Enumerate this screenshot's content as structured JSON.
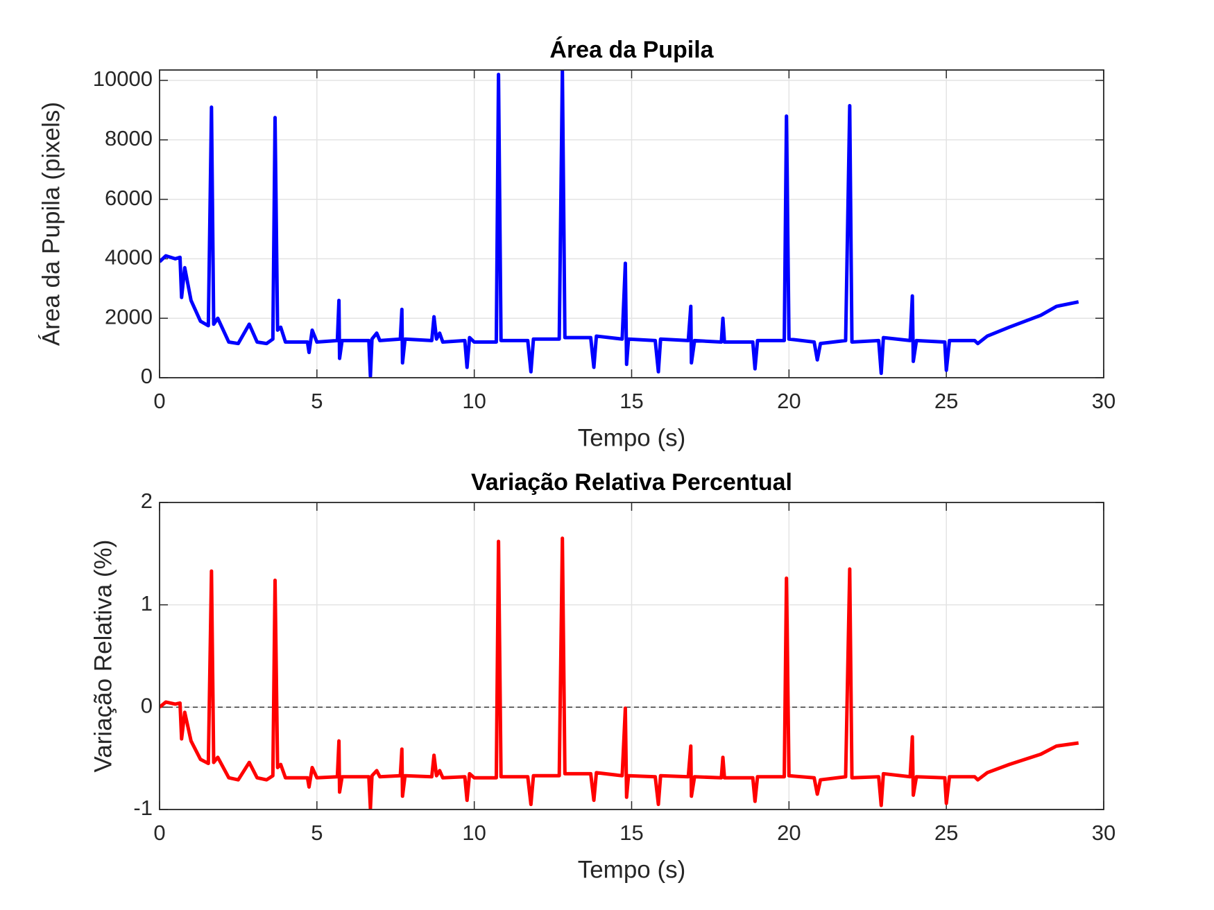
{
  "chart_data": [
    {
      "type": "line",
      "title": "Área da Pupila",
      "xlabel": "Tempo (s)",
      "ylabel": "Área da Pupila (pixels)",
      "color": "#0000ff",
      "grid": true,
      "xlim": [
        0,
        30
      ],
      "xticks": [
        0,
        5,
        10,
        15,
        20,
        25,
        30
      ],
      "ylim": [
        0,
        10350
      ],
      "yticks": [
        0,
        2000,
        4000,
        6000,
        8000,
        10000
      ],
      "x": [
        0,
        0.2,
        0.5,
        0.65,
        0.7,
        0.8,
        1.0,
        1.3,
        1.55,
        1.65,
        1.72,
        1.85,
        2.2,
        2.5,
        2.85,
        3.1,
        3.4,
        3.6,
        3.67,
        3.75,
        3.85,
        4.0,
        4.7,
        4.75,
        4.85,
        5.0,
        5.65,
        5.7,
        5.72,
        5.8,
        6.65,
        6.7,
        6.75,
        6.9,
        7.0,
        7.65,
        7.7,
        7.72,
        7.8,
        8.65,
        8.72,
        8.8,
        8.9,
        9.0,
        9.7,
        9.77,
        9.85,
        10.0,
        10.7,
        10.77,
        10.85,
        11.7,
        11.8,
        11.88,
        12.7,
        12.8,
        12.88,
        13.7,
        13.8,
        13.88,
        14.7,
        14.8,
        14.84,
        14.9,
        15.75,
        15.85,
        15.92,
        16.8,
        16.88,
        16.9,
        17.0,
        17.85,
        17.9,
        17.95,
        18.85,
        18.92,
        19.0,
        19.85,
        19.92,
        20.0,
        20.8,
        20.9,
        21.0,
        21.8,
        21.93,
        22.0,
        22.85,
        22.93,
        23.0,
        23.85,
        23.92,
        23.95,
        24.05,
        24.95,
        25.0,
        25.1,
        25.9,
        26.0,
        26.3,
        27.0,
        28.0,
        28.5,
        29.2
      ],
      "values": [
        3900,
        4100,
        4000,
        4050,
        2700,
        3700,
        2600,
        1900,
        1750,
        9100,
        1800,
        2000,
        1200,
        1150,
        1800,
        1200,
        1150,
        1300,
        8750,
        1600,
        1700,
        1200,
        1200,
        850,
        1600,
        1200,
        1250,
        2600,
        650,
        1250,
        1250,
        50,
        1300,
        1500,
        1250,
        1300,
        2300,
        500,
        1300,
        1250,
        2050,
        1300,
        1500,
        1200,
        1250,
        350,
        1350,
        1200,
        1200,
        10200,
        1250,
        1250,
        200,
        1300,
        1300,
        10350,
        1350,
        1350,
        350,
        1400,
        1300,
        3850,
        450,
        1300,
        1250,
        200,
        1300,
        1250,
        2400,
        500,
        1250,
        1200,
        2000,
        1200,
        1200,
        300,
        1250,
        1250,
        8800,
        1300,
        1200,
        600,
        1150,
        1250,
        9150,
        1200,
        1250,
        150,
        1350,
        1250,
        2750,
        550,
        1250,
        1200,
        250,
        1250,
        1250,
        1150,
        1400,
        1700,
        2100,
        2400,
        2550
      ]
    },
    {
      "type": "line",
      "title": "Variação Relativa Percentual",
      "xlabel": "Tempo (s)",
      "ylabel": "Variação Relativa (%)",
      "color": "#ff0000",
      "grid": true,
      "reference_line": 0,
      "xlim": [
        0,
        30
      ],
      "xticks": [
        0,
        5,
        10,
        15,
        20,
        25,
        30
      ],
      "ylim": [
        -1,
        2
      ],
      "yticks": [
        -1,
        0,
        1,
        2
      ],
      "x": [
        0,
        0.2,
        0.5,
        0.65,
        0.7,
        0.8,
        1.0,
        1.3,
        1.55,
        1.65,
        1.72,
        1.85,
        2.2,
        2.5,
        2.85,
        3.1,
        3.4,
        3.6,
        3.67,
        3.75,
        3.85,
        4.0,
        4.7,
        4.75,
        4.85,
        5.0,
        5.65,
        5.7,
        5.72,
        5.8,
        6.65,
        6.7,
        6.75,
        6.9,
        7.0,
        7.65,
        7.7,
        7.72,
        7.8,
        8.65,
        8.72,
        8.8,
        8.9,
        9.0,
        9.7,
        9.77,
        9.85,
        10.0,
        10.7,
        10.77,
        10.85,
        11.7,
        11.8,
        11.88,
        12.7,
        12.8,
        12.88,
        13.7,
        13.8,
        13.88,
        14.7,
        14.8,
        14.84,
        14.9,
        15.75,
        15.85,
        15.92,
        16.8,
        16.88,
        16.9,
        17.0,
        17.85,
        17.9,
        17.95,
        18.85,
        18.92,
        19.0,
        19.85,
        19.92,
        20.0,
        20.8,
        20.9,
        21.0,
        21.8,
        21.93,
        22.0,
        22.85,
        22.93,
        23.0,
        23.85,
        23.92,
        23.95,
        24.05,
        24.95,
        25.0,
        25.1,
        25.9,
        26.0,
        26.3,
        27.0,
        28.0,
        28.5,
        29.2
      ],
      "values": [
        0,
        0.05,
        0.03,
        0.04,
        -0.31,
        -0.05,
        -0.33,
        -0.51,
        -0.55,
        1.33,
        -0.54,
        -0.49,
        -0.69,
        -0.71,
        -0.54,
        -0.69,
        -0.71,
        -0.67,
        1.24,
        -0.59,
        -0.56,
        -0.69,
        -0.69,
        -0.78,
        -0.59,
        -0.69,
        -0.68,
        -0.33,
        -0.83,
        -0.68,
        -0.68,
        -0.99,
        -0.67,
        -0.62,
        -0.68,
        -0.67,
        -0.41,
        -0.87,
        -0.67,
        -0.68,
        -0.47,
        -0.67,
        -0.62,
        -0.69,
        -0.68,
        -0.91,
        -0.65,
        -0.69,
        -0.69,
        1.62,
        -0.68,
        -0.68,
        -0.95,
        -0.67,
        -0.67,
        1.65,
        -0.65,
        -0.65,
        -0.91,
        -0.64,
        -0.67,
        -0.01,
        -0.88,
        -0.67,
        -0.68,
        -0.95,
        -0.67,
        -0.68,
        -0.38,
        -0.87,
        -0.68,
        -0.69,
        -0.49,
        -0.69,
        -0.69,
        -0.92,
        -0.68,
        -0.68,
        1.26,
        -0.67,
        -0.69,
        -0.85,
        -0.71,
        -0.68,
        1.35,
        -0.69,
        -0.68,
        -0.96,
        -0.65,
        -0.68,
        -0.29,
        -0.86,
        -0.68,
        -0.69,
        -0.94,
        -0.68,
        -0.68,
        -0.71,
        -0.64,
        -0.56,
        -0.46,
        -0.38,
        -0.35
      ]
    }
  ]
}
